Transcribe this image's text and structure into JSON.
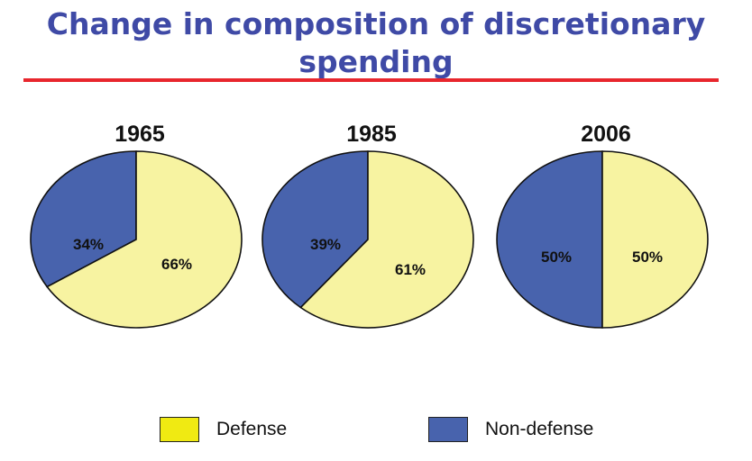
{
  "page": {
    "title": "Change in composition of discretionary spending"
  },
  "colors": {
    "defense": "#f7f3a1",
    "non_defense": "#4863ad",
    "title": "#3f4aa6",
    "rule": "#e8262d",
    "outline": "#111111",
    "legend_defense": "#f0ea12"
  },
  "chart_data": [
    {
      "type": "pie",
      "title": "1965",
      "labels": [
        "Non-defense",
        "Defense"
      ],
      "values": [
        34,
        66
      ],
      "value_labels": [
        "34%",
        "66%"
      ]
    },
    {
      "type": "pie",
      "title": "1985",
      "labels": [
        "Non-defense",
        "Defense"
      ],
      "values": [
        39,
        61
      ],
      "value_labels": [
        "39%",
        "61%"
      ]
    },
    {
      "type": "pie",
      "title": "2006",
      "labels": [
        "Non-defense",
        "Defense"
      ],
      "values": [
        50,
        50
      ],
      "value_labels": [
        "50%",
        "50%"
      ]
    }
  ],
  "legend": [
    {
      "label": "Defense",
      "color": "#f0ea12"
    },
    {
      "label": "Non-defense",
      "color": "#4863ad"
    }
  ]
}
